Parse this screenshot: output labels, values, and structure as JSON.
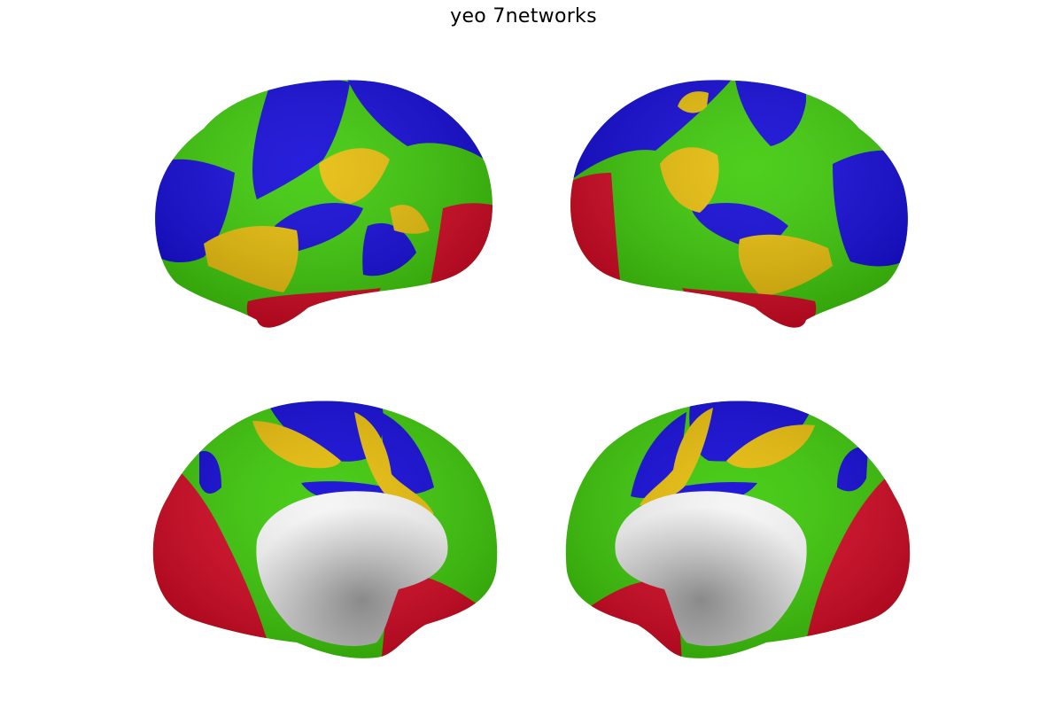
{
  "figure": {
    "title": "yeo 7networks"
  },
  "colors": {
    "blue": "#0a00d6",
    "green": "#36c800",
    "yellow": "#e6ba00",
    "red": "#d4001c",
    "medial_wall": "#bdbdbd",
    "background": "#ffffff"
  },
  "views": [
    "left-lateral",
    "right-lateral",
    "left-medial",
    "right-medial"
  ]
}
